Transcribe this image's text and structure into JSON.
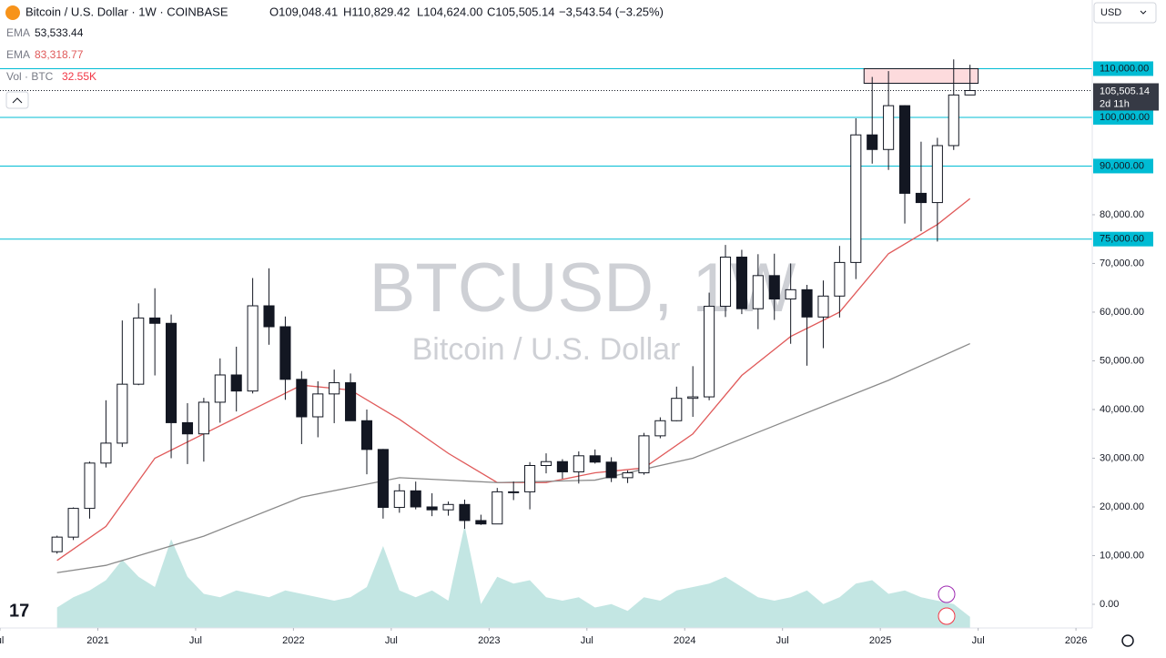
{
  "header": {
    "symbol": "Bitcoin / U.S. Dollar · 1W · COINBASE",
    "o": "O109,048.41",
    "h": "H110,829.42",
    "l": "L104,624.00",
    "c": "C105,505.14",
    "change": "−3,543.54 (−3.25%)",
    "ema1_label": "EMA",
    "ema1_value": "53,533.44",
    "ema2_label": "EMA",
    "ema2_value": "83,318.77",
    "vol_label": "Vol · BTC",
    "vol_value": "32.55K",
    "currency": "USD",
    "watermark_title": "BTCUSD, 1W",
    "watermark_sub": "Bitcoin / U.S. Dollar"
  },
  "chart_data": {
    "type": "candlestick",
    "x": [
      "2020-10",
      "2020-11",
      "2020-12",
      "2021-01",
      "2021-02",
      "2021-03",
      "2021-04",
      "2021-05",
      "2021-06",
      "2021-07",
      "2021-08",
      "2021-09",
      "2021-10",
      "2021-11",
      "2021-12",
      "2022-01",
      "2022-02",
      "2022-03",
      "2022-04",
      "2022-05",
      "2022-06",
      "2022-07",
      "2022-08",
      "2022-09",
      "2022-10",
      "2022-11",
      "2022-12",
      "2023-01",
      "2023-02",
      "2023-03",
      "2023-04",
      "2023-05",
      "2023-06",
      "2023-07",
      "2023-08",
      "2023-09",
      "2023-10",
      "2023-11",
      "2023-12",
      "2024-01",
      "2024-02",
      "2024-03",
      "2024-04",
      "2024-05",
      "2024-06",
      "2024-07",
      "2024-08",
      "2024-09",
      "2024-10",
      "2024-11",
      "2024-12",
      "2025-01",
      "2025-02",
      "2025-03",
      "2025-04",
      "2025-05",
      "2025-06"
    ],
    "open": [
      10800,
      13800,
      19700,
      29000,
      33100,
      45200,
      58800,
      57700,
      37300,
      35000,
      41500,
      47100,
      43800,
      61300,
      57000,
      46200,
      38500,
      43200,
      45500,
      37700,
      31800,
      19900,
      23300,
      20000,
      19400,
      20500,
      17200,
      16500,
      23100,
      23100,
      28500,
      29300,
      27200,
      30500,
      29200,
      26000,
      27000,
      34600,
      37700,
      42300,
      42600,
      61200,
      71300,
      60700,
      67500,
      62700,
      64600,
      59000,
      63300,
      70200,
      96400,
      93400,
      102400,
      84400,
      82500,
      94200,
      104600
    ],
    "high": [
      14100,
      19900,
      29300,
      41900,
      58300,
      61800,
      64900,
      59500,
      41300,
      42400,
      50500,
      52900,
      67000,
      69000,
      59100,
      47900,
      45800,
      48200,
      47400,
      40000,
      31900,
      24700,
      25200,
      22800,
      21100,
      21500,
      18400,
      23900,
      25200,
      29200,
      31000,
      29800,
      31400,
      31800,
      30200,
      27500,
      35200,
      38400,
      44700,
      48900,
      64000,
      73800,
      72800,
      71900,
      72000,
      70000,
      65600,
      66500,
      73600,
      99800,
      108300,
      109500,
      102500,
      95000,
      95800,
      111900,
      110800
    ],
    "low": [
      10400,
      13200,
      17600,
      28100,
      32300,
      45000,
      47000,
      30000,
      28800,
      29300,
      37300,
      39600,
      43300,
      53300,
      42000,
      32900,
      34300,
      37200,
      37700,
      26700,
      17600,
      18800,
      19500,
      18100,
      18200,
      15500,
      16300,
      16500,
      21400,
      19500,
      26900,
      25800,
      24800,
      28900,
      25100,
      24900,
      26600,
      34100,
      37600,
      38500,
      41900,
      59000,
      59600,
      56500,
      58400,
      53500,
      49000,
      52600,
      58900,
      66800,
      90500,
      89200,
      78200,
      76600,
      74500,
      93300,
      104600
    ],
    "close": [
      13800,
      19700,
      29000,
      33100,
      45200,
      58800,
      57700,
      37300,
      35000,
      41500,
      47100,
      43800,
      61300,
      57000,
      46200,
      38500,
      43200,
      45500,
      37700,
      31800,
      19900,
      23300,
      20000,
      19400,
      20500,
      17200,
      16500,
      23100,
      23100,
      28500,
      29300,
      27200,
      30500,
      29200,
      26000,
      27000,
      34600,
      37700,
      42300,
      42600,
      61200,
      71300,
      60700,
      67500,
      62700,
      64600,
      59000,
      63300,
      70200,
      96400,
      93400,
      102400,
      84400,
      82500,
      94200,
      104600,
      105505.14
    ],
    "up_color": "#ffffff",
    "down_color": "#131722",
    "series": [
      {
        "name": "EMA",
        "color": "#e05a5a",
        "x": [
          "2020-10",
          "2021-01",
          "2021-04",
          "2021-07",
          "2021-10",
          "2022-01",
          "2022-04",
          "2022-07",
          "2022-10",
          "2023-01",
          "2023-04",
          "2023-07",
          "2023-10",
          "2024-01",
          "2024-04",
          "2024-07",
          "2024-10",
          "2025-01",
          "2025-04",
          "2025-06"
        ],
        "values": [
          9000,
          16000,
          30000,
          35000,
          40000,
          45000,
          44000,
          38000,
          31000,
          25000,
          25000,
          27000,
          28000,
          35000,
          47000,
          55000,
          60000,
          72000,
          78000,
          83318.77
        ]
      },
      {
        "name": "EMA",
        "color": "#8a8a8a",
        "x": [
          "2020-10",
          "2021-01",
          "2021-07",
          "2022-01",
          "2022-07",
          "2023-01",
          "2023-07",
          "2024-01",
          "2024-07",
          "2025-01",
          "2025-06"
        ],
        "values": [
          6500,
          8000,
          14000,
          22000,
          26000,
          25000,
          25500,
          30000,
          38000,
          46000,
          53533.44
        ]
      }
    ],
    "volume": {
      "color": "rgba(38,166,154,0.28)",
      "ylim": [
        0,
        400000
      ],
      "values": [
        60000,
        90000,
        110000,
        140000,
        200000,
        150000,
        120000,
        260000,
        150000,
        100000,
        90000,
        110000,
        100000,
        90000,
        110000,
        100000,
        90000,
        80000,
        90000,
        120000,
        240000,
        110000,
        90000,
        110000,
        80000,
        300000,
        70000,
        150000,
        130000,
        140000,
        90000,
        80000,
        90000,
        60000,
        70000,
        50000,
        90000,
        80000,
        110000,
        120000,
        130000,
        150000,
        120000,
        90000,
        80000,
        90000,
        110000,
        70000,
        90000,
        130000,
        140000,
        100000,
        110000,
        90000,
        80000,
        70000,
        32550
      ]
    },
    "ylim": [
      -4860,
      124100
    ],
    "yticks": [
      {
        "value": 80000,
        "label": "80,000.00"
      },
      {
        "value": 70000,
        "label": "70,000.00"
      },
      {
        "value": 60000,
        "label": "60,000.00"
      },
      {
        "value": 50000,
        "label": "50,000.00"
      },
      {
        "value": 40000,
        "label": "40,000.00"
      },
      {
        "value": 30000,
        "label": "30,000.00"
      },
      {
        "value": 20000,
        "label": "20,000.00"
      },
      {
        "value": 10000,
        "label": "10,000.00"
      },
      {
        "value": 0,
        "label": "0.00"
      }
    ],
    "levels": [
      {
        "value": 110000,
        "label": "110,000.00"
      },
      {
        "value": 100000,
        "label": "100,000.00"
      },
      {
        "value": 90000,
        "label": "90,000.00"
      },
      {
        "value": 75000,
        "label": "75,000.00"
      }
    ],
    "level_color": "#00bcd4",
    "zone": {
      "x": [
        "2024-12",
        "2025-06"
      ],
      "values": [
        107000,
        110000
      ],
      "color": "rgba(242,54,69,0.18)"
    },
    "last_price": {
      "value": 105505.14,
      "label": "105,505.14",
      "countdown": "2d 11h"
    },
    "xlim": [
      "2020-07",
      "2026-02"
    ],
    "xticks": [
      {
        "value": "2020-07",
        "label": "ul"
      },
      {
        "value": "2021-01",
        "label": "2021"
      },
      {
        "value": "2021-07",
        "label": "Jul"
      },
      {
        "value": "2022-01",
        "label": "2022"
      },
      {
        "value": "2022-07",
        "label": "Jul"
      },
      {
        "value": "2023-01",
        "label": "2023"
      },
      {
        "value": "2023-07",
        "label": "Jul"
      },
      {
        "value": "2024-01",
        "label": "2024"
      },
      {
        "value": "2024-07",
        "label": "Jul"
      },
      {
        "value": "2025-01",
        "label": "2025"
      },
      {
        "value": "2025-07",
        "label": "Jul"
      },
      {
        "value": "2026-01",
        "label": "2026"
      }
    ]
  }
}
